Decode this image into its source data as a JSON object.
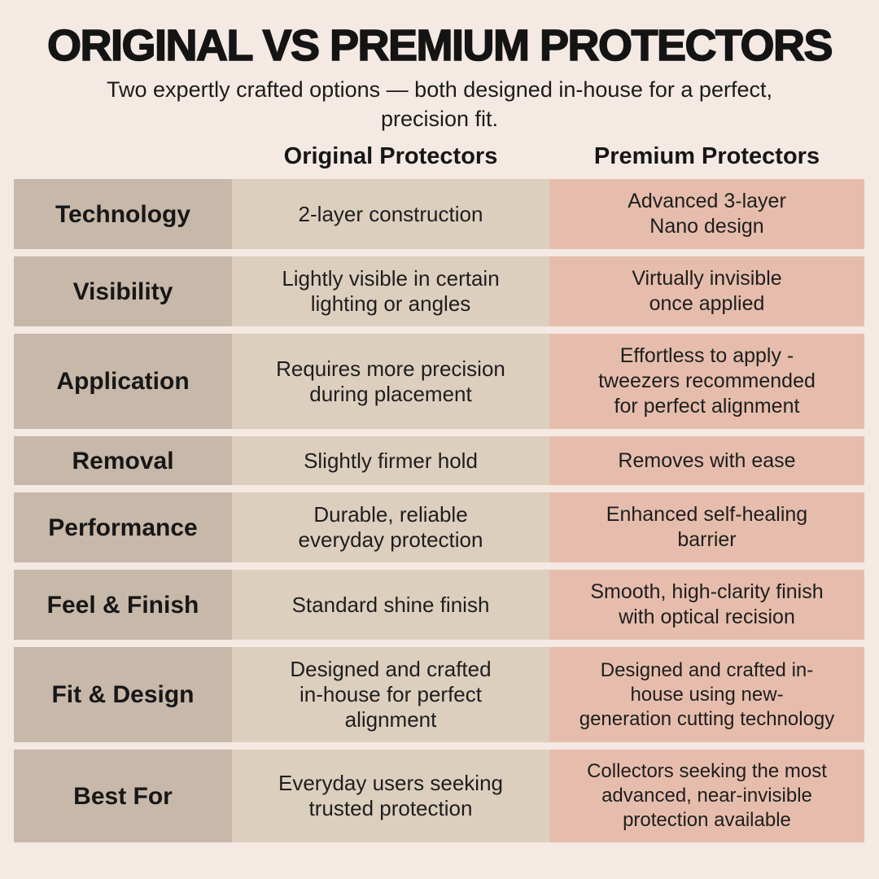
{
  "colors": {
    "background": "#f4e9e3",
    "label_col": "#c7b8aa",
    "original_col": "#ddcfbe",
    "premium_col": "#e6bdac",
    "text": "#1e1e1e"
  },
  "chart_data": {
    "type": "table",
    "title": "ORIGINAL VS PREMIUM PROTECTORS",
    "subtitle": "Two expertly crafted options — both designed in-house for a perfect,\nprecision fit.",
    "columns": [
      "",
      "Original Protectors",
      "Premium Protectors"
    ],
    "rows": [
      {
        "label": "Technology",
        "original": "2-layer construction",
        "premium": "Advanced 3-layer\nNano design"
      },
      {
        "label": "Visibility",
        "original": "Lightly visible in certain\nlighting or angles",
        "premium": "Virtually invisible\nonce applied"
      },
      {
        "label": "Application",
        "original": "Requires more precision\nduring placement",
        "premium": "Effortless to apply -\ntweezers recommended\nfor perfect alignment"
      },
      {
        "label": "Removal",
        "original": "Slightly firmer hold",
        "premium": "Removes with ease"
      },
      {
        "label": "Performance",
        "original": "Durable, reliable\neveryday protection",
        "premium": "Enhanced self-healing\nbarrier"
      },
      {
        "label": "Feel & Finish",
        "original": "Standard shine finish",
        "premium": "Smooth, high-clarity finish\nwith optical recision"
      },
      {
        "label": "Fit & Design",
        "original": "Designed and crafted\nin-house for perfect\nalignment",
        "premium": "Designed and crafted in-\nhouse using new-\ngeneration cutting technology"
      },
      {
        "label": "Best For",
        "original": "Everyday users seeking\ntrusted protection",
        "premium": "Collectors seeking the most\nadvanced, near-invisible\nprotection available"
      }
    ]
  }
}
